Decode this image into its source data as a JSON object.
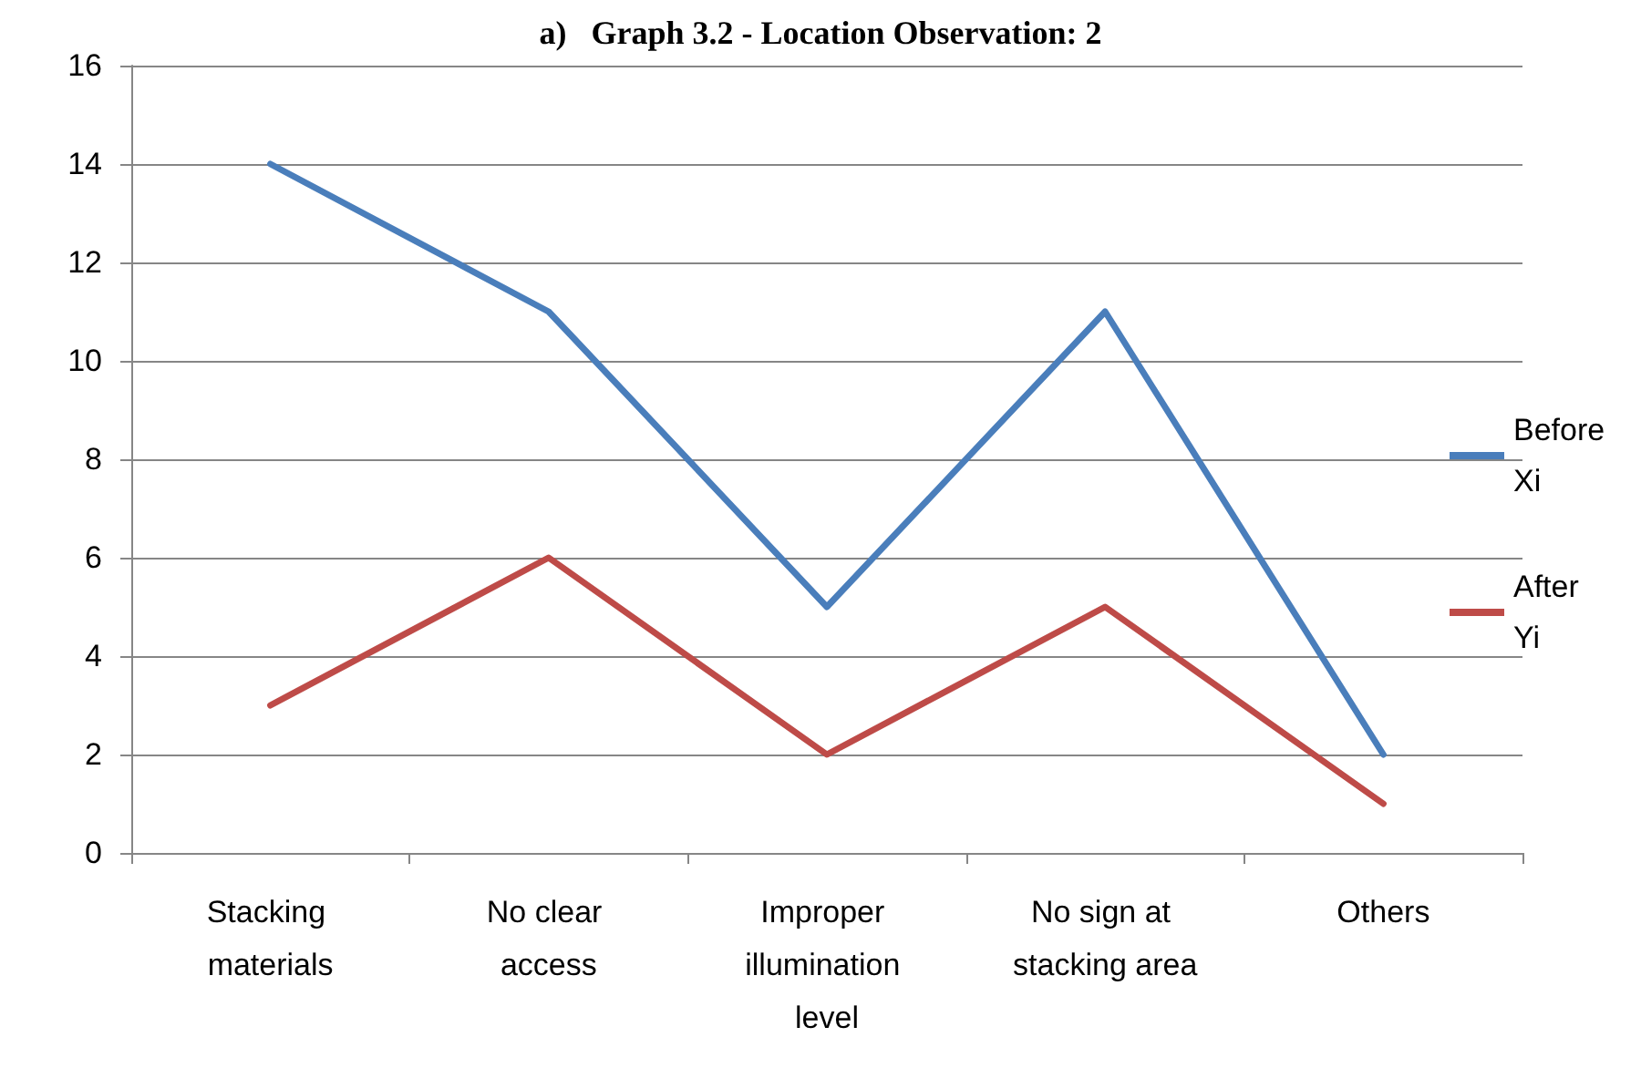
{
  "chart_data": {
    "type": "line",
    "title": "a)   Graph 3.2 - Location Observation: 2",
    "categories": [
      "Stacking materials",
      "No clear access",
      "Improper illumination level",
      "No sign at stacking area",
      "Others"
    ],
    "series": [
      {
        "name": "Before Xi",
        "color": "#4a7ebb",
        "values": [
          14,
          11,
          5,
          11,
          2
        ]
      },
      {
        "name": "After Yi",
        "color": "#be4b48",
        "values": [
          3,
          6,
          2,
          5,
          1
        ]
      }
    ],
    "ylim": [
      0,
      16
    ],
    "yticks": [
      0,
      2,
      4,
      6,
      8,
      10,
      12,
      14,
      16
    ],
    "grid": "y",
    "legend": "right",
    "marker": "none",
    "line_style": "solid"
  }
}
